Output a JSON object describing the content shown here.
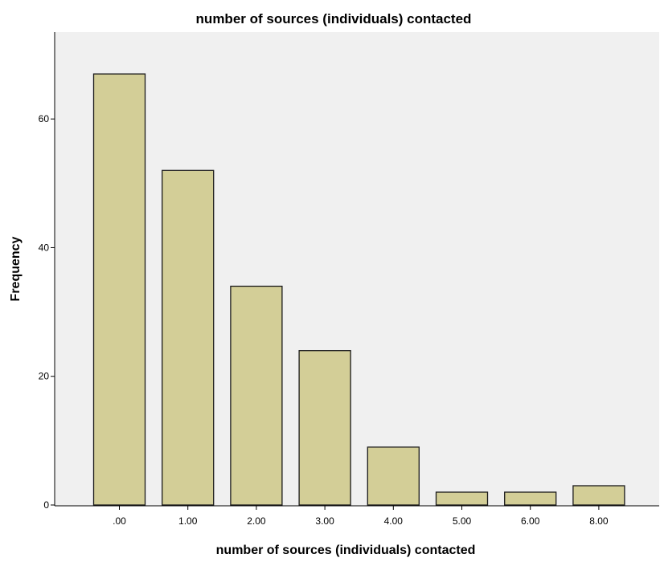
{
  "chart_data": {
    "type": "bar",
    "title": "number of sources (individuals) contacted",
    "xlabel": "number of sources (individuals) contacted",
    "ylabel": "Frequency",
    "categories": [
      ".00",
      "1.00",
      "2.00",
      "3.00",
      "4.00",
      "5.00",
      "6.00",
      "8.00"
    ],
    "values": [
      67,
      52,
      34,
      24,
      9,
      2,
      2,
      3
    ],
    "ylim": [
      0,
      73.5
    ],
    "yticks": [
      0,
      20,
      40,
      60
    ],
    "grid": false,
    "legend": "none",
    "colors": {
      "plot_background": "#f0f0f0",
      "bar_fill": "#d3ce97",
      "bar_stroke": "#1a1a1a",
      "axis": "#000000"
    }
  }
}
